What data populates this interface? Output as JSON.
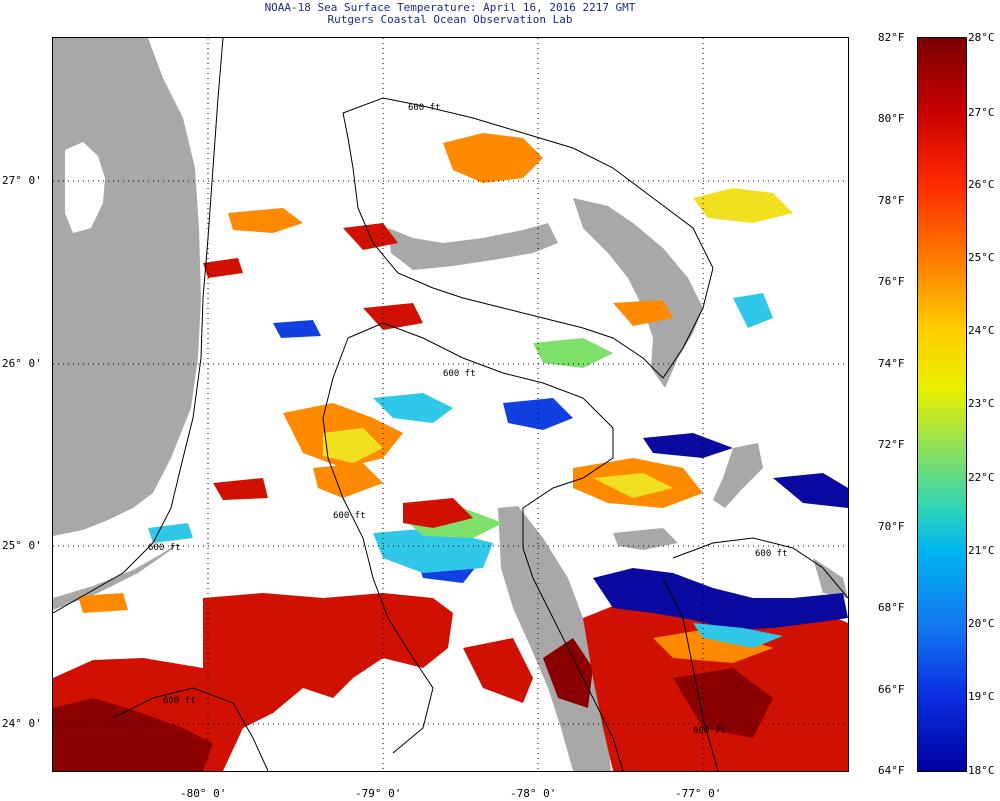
{
  "title": {
    "line1": "NOAA-18 Sea Surface Temperature:  April 16, 2016 2217 GMT",
    "line2": "Rutgers Coastal Ocean Observation Lab"
  },
  "map": {
    "lon_labels": [
      "-80° 0'",
      "-79° 0'",
      "-78° 0'",
      "-77° 0'"
    ],
    "lat_labels": [
      "27° 0'",
      "26° 0'",
      "25° 0'",
      "24° 0'"
    ],
    "contour_labels": [
      "600 ft",
      "600 ft",
      "600 ft",
      "600 ft",
      "600 ft",
      "600 ft",
      "600 ft"
    ]
  },
  "colorbar": {
    "fahrenheit": [
      "82°F",
      "80°F",
      "78°F",
      "76°F",
      "74°F",
      "72°F",
      "70°F",
      "68°F",
      "66°F",
      "64°F"
    ],
    "celsius": [
      "28°C",
      "27°C",
      "26°C",
      "25°C",
      "24°C",
      "23°C",
      "22°C",
      "21°C",
      "20°C",
      "19°C",
      "18°C"
    ]
  },
  "colors": {
    "land": "#a8a8a8",
    "warm": "#d01000",
    "hot": "#8a0000",
    "orange": "#ff8a00",
    "yellow": "#f0e020",
    "green": "#7ce06a",
    "cyan": "#30c8e8",
    "blue": "#1040e0",
    "darkblue": "#0a0aa0"
  }
}
